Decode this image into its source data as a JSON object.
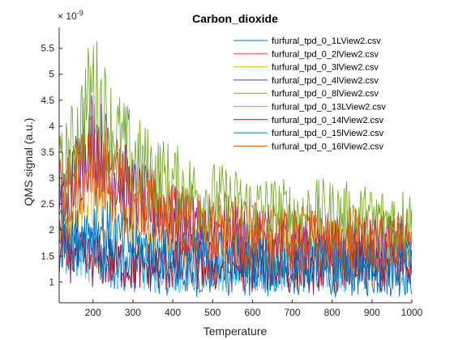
{
  "chart_data": {
    "type": "line",
    "title": "Carbon_dioxide",
    "xlabel": "Temperature",
    "ylabel": "QMS signal (a.u.)",
    "y_exponent_base": "× 10",
    "y_exponent_power": "-9",
    "xlim": [
      115,
      1000
    ],
    "ylim": [
      0.6,
      5.9
    ],
    "x_ticks": [
      200,
      300,
      400,
      500,
      600,
      700,
      800,
      900,
      1000
    ],
    "y_ticks": [
      1,
      1.5,
      2,
      2.5,
      3,
      3.5,
      4,
      4.5,
      5,
      5.5
    ],
    "grid": false,
    "legend_position": "top-right",
    "series": [
      {
        "name": "furfural_tpd_0_1LView2.csv",
        "color": "#0072BD",
        "x": [
          115,
          150,
          200,
          250,
          300,
          350,
          400,
          450,
          500,
          600,
          700,
          800,
          900,
          1000
        ],
        "values": [
          2.0,
          1.7,
          1.5,
          1.4,
          1.3,
          1.3,
          1.2,
          1.2,
          1.2,
          1.2,
          1.2,
          1.2,
          1.2,
          1.2
        ]
      },
      {
        "name": "furfural_tpd_0_2lView2.csv",
        "color": "#D95319",
        "x": [
          115,
          150,
          200,
          250,
          300,
          350,
          400,
          450,
          500,
          600,
          700,
          800,
          900,
          1000
        ],
        "values": [
          2.7,
          3.0,
          3.4,
          3.1,
          2.8,
          2.6,
          2.4,
          2.2,
          2.1,
          2.0,
          1.9,
          1.9,
          1.9,
          1.9
        ]
      },
      {
        "name": "furfural_tpd_0_3lView2.csv",
        "color": "#EDB120",
        "x": [
          115,
          150,
          200,
          250,
          300,
          350,
          400,
          450,
          500,
          600,
          700,
          800,
          900,
          1000
        ],
        "values": [
          2.2,
          2.4,
          2.6,
          2.4,
          2.2,
          2.0,
          1.9,
          1.8,
          1.7,
          1.7,
          1.7,
          1.7,
          1.7,
          1.7
        ]
      },
      {
        "name": "furfural_tpd_0_4lView2.csv",
        "color": "#7E2F8E",
        "x": [
          115,
          150,
          200,
          250,
          300,
          350,
          400,
          450,
          500,
          600,
          700,
          800,
          900,
          1000
        ],
        "values": [
          2.5,
          3.0,
          3.9,
          3.2,
          2.7,
          2.4,
          2.2,
          2.0,
          1.9,
          1.8,
          1.7,
          1.7,
          1.7,
          1.7
        ]
      },
      {
        "name": "furfural_tpd_0_8lView2.csv",
        "color": "#77AC30",
        "x": [
          115,
          150,
          200,
          250,
          300,
          350,
          400,
          450,
          500,
          600,
          700,
          800,
          900,
          1000
        ],
        "values": [
          3.0,
          3.6,
          4.8,
          3.9,
          3.4,
          3.1,
          2.9,
          2.7,
          2.6,
          2.4,
          2.3,
          2.3,
          2.2,
          2.2
        ]
      },
      {
        "name": "furfural_tpd_0_13LView2.csv",
        "color": "#4DBEEE",
        "x": [
          115,
          150,
          200,
          250,
          300,
          350,
          400,
          450,
          500,
          600,
          700,
          800,
          900,
          1000
        ],
        "values": [
          1.8,
          1.6,
          1.5,
          1.4,
          1.3,
          1.3,
          1.3,
          1.3,
          1.3,
          1.3,
          1.3,
          1.3,
          1.3,
          1.3
        ]
      },
      {
        "name": "furfural_tpd_0_14lView2.csv",
        "color": "#A2142F",
        "x": [
          115,
          150,
          200,
          250,
          300,
          350,
          400,
          450,
          500,
          600,
          700,
          800,
          900,
          1000
        ],
        "values": [
          1.6,
          1.5,
          1.4,
          1.4,
          1.3,
          1.3,
          1.3,
          1.3,
          1.3,
          1.3,
          1.3,
          1.3,
          1.3,
          1.3
        ]
      },
      {
        "name": "furfural_tpd_0_15lView2.csv",
        "color": "#0072BD",
        "x": [
          115,
          150,
          200,
          250,
          300,
          350,
          400,
          450,
          500,
          600,
          700,
          800,
          900,
          1000
        ],
        "values": [
          1.9,
          1.8,
          2.1,
          1.9,
          1.7,
          1.6,
          1.5,
          1.5,
          1.5,
          1.4,
          1.4,
          1.4,
          1.4,
          1.4
        ]
      },
      {
        "name": "furfural_tpd_0_16lView2.csv",
        "color": "#D95319",
        "x": [
          115,
          150,
          200,
          250,
          300,
          350,
          400,
          450,
          500,
          600,
          700,
          800,
          900,
          1000
        ],
        "values": [
          2.4,
          2.9,
          3.2,
          2.9,
          2.6,
          2.4,
          2.2,
          2.0,
          1.9,
          1.8,
          1.8,
          1.7,
          1.7,
          1.7
        ]
      }
    ]
  }
}
